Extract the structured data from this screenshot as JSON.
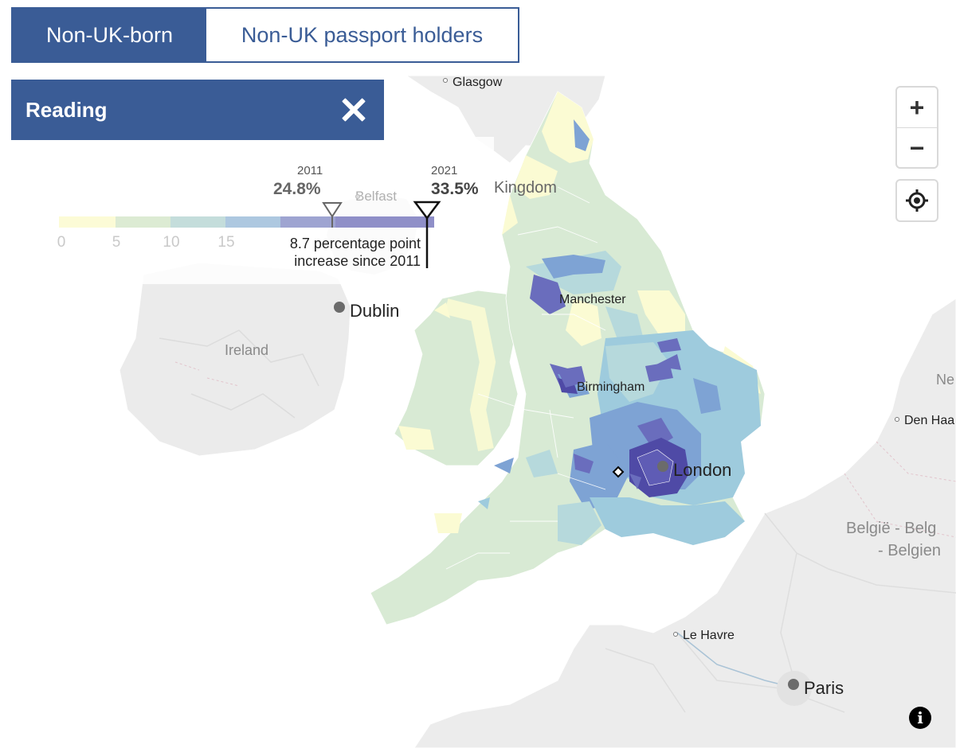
{
  "tabs": {
    "active": "Non-UK-born",
    "inactive": "Non-UK passport holders"
  },
  "selection": {
    "name": "Reading"
  },
  "legend": {
    "ticks": [
      "0",
      "5",
      "10",
      "15"
    ],
    "colors": [
      "#fcfbd6",
      "#dcebd3",
      "#c4dddb",
      "#adc8e0",
      "#9ea4d1",
      "#8f8fc8"
    ],
    "year_2011": "2011",
    "value_2011": "24.8%",
    "year_2021": "2021",
    "value_2021": "33.5%",
    "change_line1": "8.7 percentage point",
    "change_line2": "increase since 2011"
  },
  "map": {
    "labels": {
      "glasgow": "Glasgow",
      "belfast": "Belfast",
      "kingdom": "Kingdom",
      "dublin": "Dublin",
      "ireland": "Ireland",
      "manchester": "Manchester",
      "birmingham": "Birmingham",
      "london": "London",
      "den_haag": "Den Haa",
      "belgie_1": "België - Belg",
      "belgie_2": "- Belgien",
      "le_havre": "Le Havre",
      "paris": "Paris",
      "ne": "Ne"
    },
    "choropleth_colors": {
      "low": "#fbfbd3",
      "lightgreen": "#d8ead4",
      "teal": "#b6d9dc",
      "lightblue": "#9ecbdd",
      "blue": "#7ea3d4",
      "purple": "#6a6dbd",
      "darkpurple": "#4f4aa6"
    }
  },
  "controls": {
    "zoom_in": "+",
    "zoom_out": "−",
    "info": "i"
  }
}
